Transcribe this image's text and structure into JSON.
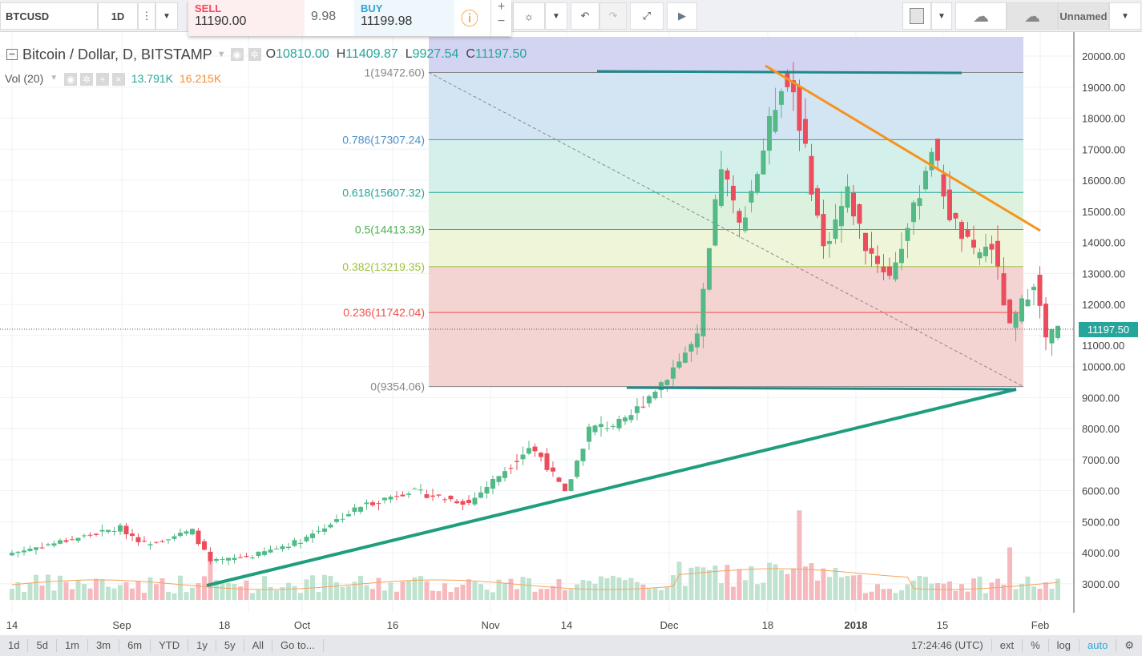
{
  "toolbar": {
    "symbol": "BTCUSD",
    "interval": "1D",
    "sell_label": "SELL",
    "sell_price": "11190.00",
    "spread": "9.98",
    "buy_label": "BUY",
    "buy_price": "11199.98",
    "layout_name": "Unnamed"
  },
  "legend": {
    "title": "Bitcoin / Dollar, D, BITSTAMP",
    "o_label": "O",
    "o": "10810.00",
    "h_label": "H",
    "h": "11409.87",
    "l_label": "L",
    "l": "9927.54",
    "c_label": "C",
    "c": "11197.50"
  },
  "volume": {
    "label": "Vol (20)",
    "v1": "13.791K",
    "v2": "16.215K"
  },
  "current_price": "11197.50",
  "price_axis": [
    "20000.00",
    "19000.00",
    "18000.00",
    "17000.00",
    "16000.00",
    "15000.00",
    "14000.00",
    "13000.00",
    "12000.00",
    "11000.00",
    "10000.00",
    "9000.00",
    "8000.00",
    "7000.00",
    "6000.00",
    "5000.00",
    "4000.00",
    "3000.00"
  ],
  "time_axis": [
    "14",
    "Sep",
    "18",
    "Oct",
    "16",
    "Nov",
    "14",
    "Dec",
    "18",
    "2018",
    "15",
    "Feb"
  ],
  "fib": [
    {
      "label": "1(19472.60)",
      "price": 19472.6,
      "color": "#888888",
      "fill": "#e4e4e4"
    },
    {
      "label": "0.786(17307.24)",
      "price": 17307.24,
      "color": "#4a90c9",
      "fill": "#d3e5f3"
    },
    {
      "label": "0.618(15607.32)",
      "price": 15607.32,
      "color": "#26a69a",
      "fill": "#d4f0ea"
    },
    {
      "label": "0.5(14413.33)",
      "price": 14413.33,
      "color": "#4caf50",
      "fill": "#ddf2de"
    },
    {
      "label": "0.382(13219.35)",
      "price": 13219.35,
      "color": "#9bc23c",
      "fill": "#eef5d8"
    },
    {
      "label": "0.236(11742.04)",
      "price": 11742.04,
      "color": "#f0504a",
      "fill": "#f4d3d3"
    },
    {
      "label": "0(9354.06)",
      "price": 9354.06,
      "color": "#888888",
      "fill": "#f4d3d3"
    }
  ],
  "price_keypoints": [
    [
      0,
      4000
    ],
    [
      18,
      4800
    ],
    [
      22,
      4300
    ],
    [
      30,
      4700
    ],
    [
      33,
      3700
    ],
    [
      40,
      3900
    ],
    [
      48,
      4400
    ],
    [
      58,
      5500
    ],
    [
      66,
      6000
    ],
    [
      76,
      5600
    ],
    [
      86,
      7400
    ],
    [
      88,
      7100
    ],
    [
      92,
      5900
    ],
    [
      96,
      8000
    ],
    [
      102,
      8200
    ],
    [
      108,
      9500
    ],
    [
      114,
      10900
    ],
    [
      118,
      16500
    ],
    [
      121,
      14500
    ],
    [
      124,
      16300
    ],
    [
      128,
      19200
    ],
    [
      130,
      18900
    ],
    [
      135,
      13800
    ],
    [
      139,
      15600
    ],
    [
      142,
      13900
    ],
    [
      146,
      12900
    ],
    [
      150,
      15000
    ],
    [
      153,
      17100
    ],
    [
      156,
      14900
    ],
    [
      160,
      13600
    ],
    [
      163,
      13900
    ],
    [
      166,
      11200
    ],
    [
      170,
      12800
    ],
    [
      172,
      10900
    ],
    [
      174,
      11197
    ]
  ],
  "bottom_bar": {
    "ranges": [
      "1d",
      "5d",
      "1m",
      "3m",
      "6m",
      "YTD",
      "1y",
      "5y",
      "All",
      "Go to..."
    ],
    "time": "17:24:46 (UTC)",
    "ext": "ext",
    "percent": "%",
    "log": "log",
    "auto": "auto"
  }
}
